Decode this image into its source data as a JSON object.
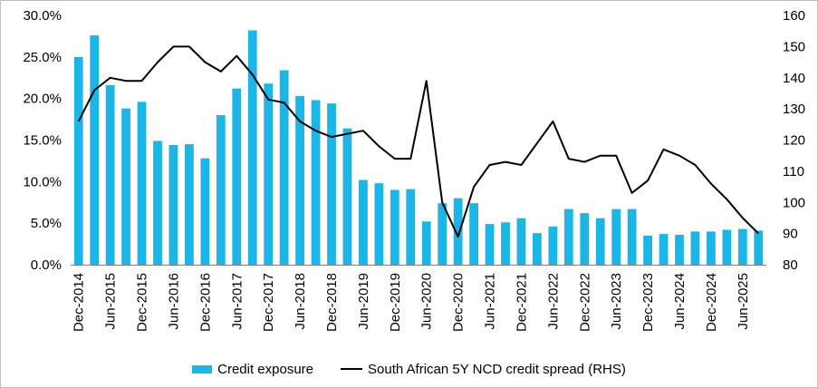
{
  "chart_data": {
    "type": "bar",
    "colors": {
      "bar": "#1cb6e6",
      "line": "#000000"
    },
    "categories": [
      "Dec-2014",
      "Mar-2015",
      "Jun-2015",
      "Sep-2015",
      "Dec-2015",
      "Mar-2016",
      "Jun-2016",
      "Sep-2016",
      "Dec-2016",
      "Mar-2017",
      "Jun-2017",
      "Sep-2017",
      "Dec-2017",
      "Mar-2018",
      "Jun-2018",
      "Sep-2018",
      "Dec-2018",
      "Mar-2019",
      "Jun-2019",
      "Sep-2019",
      "Dec-2019",
      "Mar-2020",
      "Jun-2020",
      "Sep-2020",
      "Dec-2020",
      "Mar-2021",
      "Jun-2021",
      "Sep-2021",
      "Dec-2021",
      "Mar-2022",
      "Jun-2022",
      "Sep-2022",
      "Dec-2022",
      "Mar-2023",
      "Jun-2023",
      "Sep-2023",
      "Dec-2023",
      "Mar-2024",
      "Jun-2024",
      "Sep-2024",
      "Dec-2024",
      "Mar-2025",
      "Jun-2025",
      "Sep-2025"
    ],
    "x_tick_labels": [
      "Dec-2014",
      "",
      "Jun-2015",
      "",
      "Dec-2015",
      "",
      "Jun-2016",
      "",
      "Dec-2016",
      "",
      "Jun-2017",
      "",
      "Dec-2017",
      "",
      "Jun-2018",
      "",
      "Dec-2018",
      "",
      "Jun-2019",
      "",
      "Dec-2019",
      "",
      "Jun-2020",
      "",
      "Dec-2020",
      "",
      "Jun-2021",
      "",
      "Dec-2021",
      "",
      "Jun-2022",
      "",
      "Dec-2022",
      "",
      "Jun-2023",
      "",
      "Dec-2023",
      "",
      "Jun-2024",
      "",
      "Dec-2024",
      "",
      "Jun-2025",
      ""
    ],
    "series": [
      {
        "name": "Credit exposure",
        "type": "bar",
        "axis": "left",
        "values": [
          25.0,
          27.6,
          21.6,
          18.8,
          19.6,
          14.9,
          14.4,
          14.5,
          12.8,
          18.0,
          21.2,
          28.2,
          21.8,
          23.4,
          20.3,
          19.8,
          19.4,
          16.4,
          10.2,
          9.8,
          9.0,
          9.1,
          5.2,
          7.4,
          8.0,
          7.4,
          4.9,
          5.1,
          5.6,
          3.8,
          4.6,
          6.7,
          6.2,
          5.6,
          6.7,
          6.7,
          3.5,
          3.7,
          3.6,
          4.0,
          4.0,
          4.2,
          4.3,
          4.1
        ]
      },
      {
        "name": "South African 5Y NCD credit spread (RHS)",
        "type": "line",
        "axis": "right",
        "values": [
          126,
          136,
          140,
          139,
          139,
          145,
          150,
          150,
          145,
          142,
          147,
          141,
          133,
          132,
          126,
          123,
          121,
          122,
          123,
          118,
          114,
          114,
          139,
          100,
          89,
          105,
          112,
          113,
          112,
          119,
          126,
          114,
          113,
          115,
          115,
          103,
          107,
          117,
          115,
          112,
          106,
          101,
          95,
          90
        ]
      }
    ],
    "y_left": {
      "min": 0,
      "max": 30,
      "step": 5,
      "tick_labels": [
        "0.0%",
        "5.0%",
        "10.0%",
        "15.0%",
        "20.0%",
        "25.0%",
        "30.0%"
      ]
    },
    "y_right": {
      "min": 80,
      "max": 160,
      "step": 10,
      "tick_labels": [
        "80",
        "90",
        "100",
        "110",
        "120",
        "130",
        "140",
        "150",
        "160"
      ]
    },
    "grid": false,
    "legend_position": "bottom-center"
  },
  "legend": {
    "bar_label": "Credit exposure",
    "line_label": "South African 5Y NCD credit spread (RHS)"
  }
}
